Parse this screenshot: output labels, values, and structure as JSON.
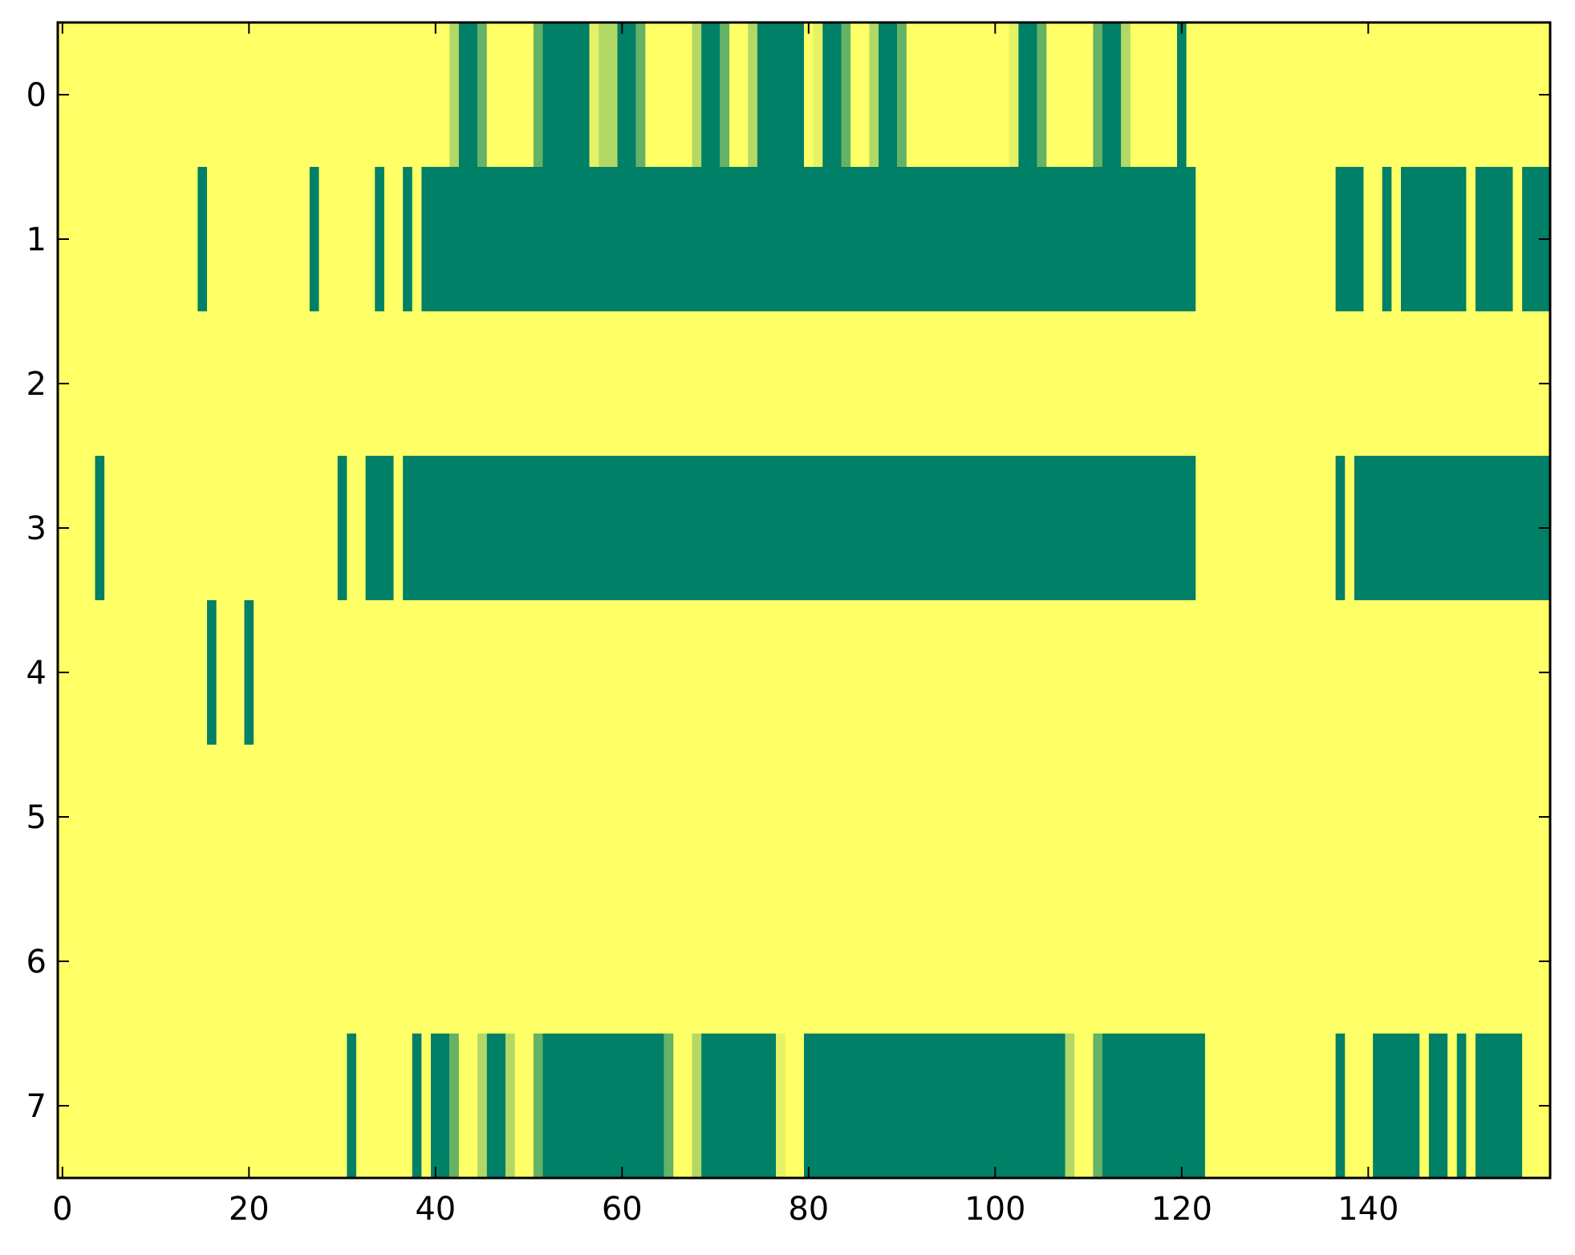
{
  "chart_data": {
    "type": "heatmap",
    "title": "",
    "xlabel": "",
    "ylabel": "",
    "xlim": [
      -0.5,
      159.5
    ],
    "ylim": [
      7.5,
      -0.5
    ],
    "x_ticks": [
      0,
      20,
      40,
      60,
      80,
      100,
      120,
      140
    ],
    "x_tick_labels": [
      "0",
      "20",
      "40",
      "60",
      "80",
      "100",
      "120",
      "140"
    ],
    "y_ticks": [
      0,
      1,
      2,
      3,
      4,
      5,
      6,
      7
    ],
    "y_tick_labels": [
      "0",
      "1",
      "2",
      "3",
      "4",
      "5",
      "6",
      "7"
    ],
    "n_rows": 8,
    "n_cols": 160,
    "background_value": 0,
    "colormap": "summer_r",
    "color_scale": {
      "0": "#ffff66",
      "0.1": "#e5f266",
      "0.3": "#b2d866",
      "0.6": "#66b266",
      "1": "#008066"
    },
    "grid": false,
    "legend": "none",
    "rows": [
      {
        "row": 0,
        "cells": [
          {
            "start": 42,
            "end": 42,
            "value": 0.3
          },
          {
            "start": 43,
            "end": 44,
            "value": 1
          },
          {
            "start": 45,
            "end": 45,
            "value": 0.6
          },
          {
            "start": 51,
            "end": 51,
            "value": 0.6
          },
          {
            "start": 52,
            "end": 56,
            "value": 1
          },
          {
            "start": 57,
            "end": 57,
            "value": 0.1
          },
          {
            "start": 58,
            "end": 59,
            "value": 0.3
          },
          {
            "start": 60,
            "end": 61,
            "value": 1
          },
          {
            "start": 62,
            "end": 62,
            "value": 0.6
          },
          {
            "start": 68,
            "end": 68,
            "value": 0.3
          },
          {
            "start": 69,
            "end": 70,
            "value": 1
          },
          {
            "start": 71,
            "end": 71,
            "value": 0.6
          },
          {
            "start": 74,
            "end": 74,
            "value": 0.3
          },
          {
            "start": 75,
            "end": 79,
            "value": 1
          },
          {
            "start": 81,
            "end": 81,
            "value": 0.1
          },
          {
            "start": 82,
            "end": 83,
            "value": 1
          },
          {
            "start": 84,
            "end": 84,
            "value": 0.6
          },
          {
            "start": 87,
            "end": 87,
            "value": 0.3
          },
          {
            "start": 88,
            "end": 89,
            "value": 1
          },
          {
            "start": 90,
            "end": 90,
            "value": 0.6
          },
          {
            "start": 102,
            "end": 102,
            "value": 0.1
          },
          {
            "start": 103,
            "end": 104,
            "value": 1
          },
          {
            "start": 105,
            "end": 105,
            "value": 0.6
          },
          {
            "start": 111,
            "end": 111,
            "value": 0.6
          },
          {
            "start": 112,
            "end": 113,
            "value": 1
          },
          {
            "start": 114,
            "end": 114,
            "value": 0.3
          },
          {
            "start": 120,
            "end": 120,
            "value": 1
          }
        ]
      },
      {
        "row": 1,
        "cells": [
          {
            "start": 15,
            "end": 15,
            "value": 1
          },
          {
            "start": 27,
            "end": 27,
            "value": 1
          },
          {
            "start": 34,
            "end": 34,
            "value": 1
          },
          {
            "start": 37,
            "end": 37,
            "value": 1
          },
          {
            "start": 39,
            "end": 121,
            "value": 1
          },
          {
            "start": 137,
            "end": 139,
            "value": 1
          },
          {
            "start": 142,
            "end": 142,
            "value": 1
          },
          {
            "start": 144,
            "end": 150,
            "value": 1
          },
          {
            "start": 152,
            "end": 155,
            "value": 1
          },
          {
            "start": 157,
            "end": 159,
            "value": 1
          }
        ]
      },
      {
        "row": 2,
        "cells": []
      },
      {
        "row": 3,
        "cells": [
          {
            "start": 4,
            "end": 4,
            "value": 1
          },
          {
            "start": 30,
            "end": 30,
            "value": 1
          },
          {
            "start": 33,
            "end": 35,
            "value": 1
          },
          {
            "start": 37,
            "end": 121,
            "value": 1
          },
          {
            "start": 137,
            "end": 137,
            "value": 1
          },
          {
            "start": 139,
            "end": 159,
            "value": 1
          }
        ]
      },
      {
        "row": 4,
        "cells": [
          {
            "start": 16,
            "end": 16,
            "value": 1
          },
          {
            "start": 20,
            "end": 20,
            "value": 1
          }
        ]
      },
      {
        "row": 5,
        "cells": []
      },
      {
        "row": 6,
        "cells": []
      },
      {
        "row": 7,
        "cells": [
          {
            "start": 31,
            "end": 31,
            "value": 1
          },
          {
            "start": 38,
            "end": 38,
            "value": 1
          },
          {
            "start": 40,
            "end": 41,
            "value": 1
          },
          {
            "start": 42,
            "end": 42,
            "value": 0.6
          },
          {
            "start": 45,
            "end": 45,
            "value": 0.3
          },
          {
            "start": 46,
            "end": 47,
            "value": 1
          },
          {
            "start": 48,
            "end": 48,
            "value": 0.3
          },
          {
            "start": 51,
            "end": 51,
            "value": 0.6
          },
          {
            "start": 52,
            "end": 64,
            "value": 1
          },
          {
            "start": 65,
            "end": 65,
            "value": 0.6
          },
          {
            "start": 68,
            "end": 68,
            "value": 0.3
          },
          {
            "start": 69,
            "end": 76,
            "value": 1
          },
          {
            "start": 77,
            "end": 77,
            "value": 0.1
          },
          {
            "start": 80,
            "end": 107,
            "value": 1
          },
          {
            "start": 108,
            "end": 108,
            "value": 0.3
          },
          {
            "start": 111,
            "end": 111,
            "value": 0.6
          },
          {
            "start": 112,
            "end": 122,
            "value": 1
          },
          {
            "start": 137,
            "end": 137,
            "value": 1
          },
          {
            "start": 141,
            "end": 145,
            "value": 1
          },
          {
            "start": 147,
            "end": 148,
            "value": 1
          },
          {
            "start": 150,
            "end": 150,
            "value": 1
          },
          {
            "start": 152,
            "end": 156,
            "value": 1
          }
        ]
      }
    ]
  }
}
